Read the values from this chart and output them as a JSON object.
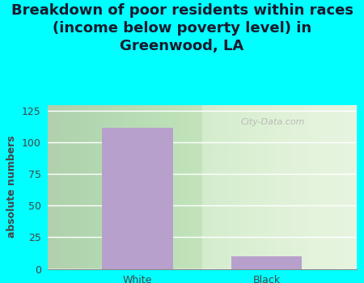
{
  "title": "Breakdown of poor residents within races\n(income below poverty level) in\nGreenwood, LA",
  "categories": [
    "White",
    "Black"
  ],
  "values": [
    112,
    10
  ],
  "bar_color": "#b8a0cc",
  "ylabel": "absolute numbers",
  "ylim": [
    0,
    130
  ],
  "yticks": [
    0,
    25,
    50,
    75,
    100,
    125
  ],
  "bg_color": "#00ffff",
  "plot_bg_color": "#d8ecd0",
  "title_fontsize": 13,
  "ylabel_fontsize": 9,
  "tick_fontsize": 9,
  "watermark": "City-Data.com",
  "title_color": "#1a1a2e"
}
